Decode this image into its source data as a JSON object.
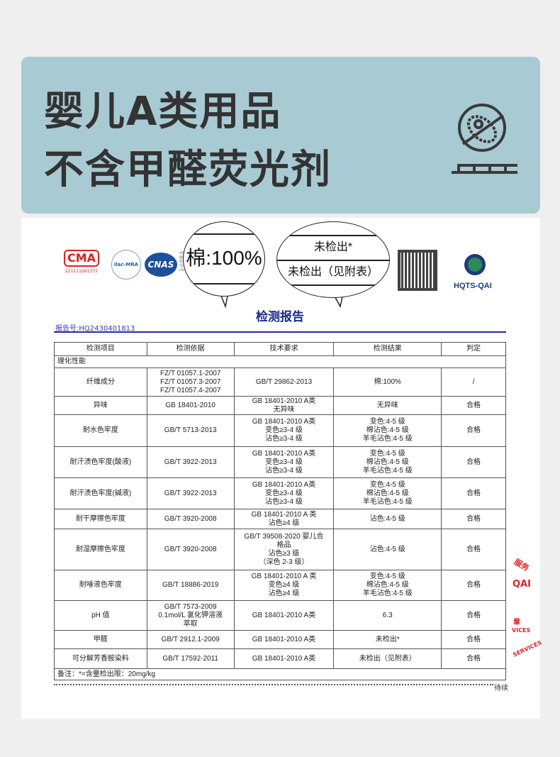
{
  "banner": {
    "line1": "婴儿A类用品",
    "line2": "不含甲醛荧光剂",
    "icon": "no-bacteria-icon"
  },
  "logos": {
    "cma": "CMA",
    "cma_no": "221111261372",
    "ilac": "ilac-MRA",
    "cnas": "CNAS",
    "cnas_text": [
      "中国认可",
      "国际互认",
      "检测",
      "TESTING",
      "CNAS L3129"
    ],
    "hqts": "HQTS-QAI"
  },
  "report": {
    "title": "检测报告",
    "number": "报告号:HQ2430401813",
    "headers": [
      "检测项目",
      "检测依据",
      "技术要求",
      "检测结果",
      "判定"
    ],
    "section": "理化性能",
    "rows": [
      {
        "item": "纤维成分",
        "basis": [
          "FZ/T 01057.1-2007",
          "FZ/T 01057.3-2007",
          "FZ/T 01057.4-2007"
        ],
        "req": [
          "GB/T 29862-2013"
        ],
        "result": [
          "棉:100%"
        ],
        "verdict": "/"
      },
      {
        "item": "异味",
        "basis": [
          "GB 18401-2010"
        ],
        "req": [
          "GB 18401-2010 A类",
          "无异味"
        ],
        "result": [
          "无异味"
        ],
        "verdict": "合格"
      },
      {
        "item": "耐水色牢度",
        "basis": [
          "GB/T 5713-2013"
        ],
        "req": [
          "GB 18401-2010 A类",
          "变色≥3-4 级",
          "沾色≥3-4 级"
        ],
        "result": [
          "变色:4-5 级",
          "棉沾色:4-5 级",
          "羊毛沾色:4-5 级"
        ],
        "verdict": "合格"
      },
      {
        "item": "耐汗渍色牢度(酸液)",
        "basis": [
          "GB/T 3922-2013"
        ],
        "req": [
          "GB 18401-2010 A类",
          "变色≥3-4 级",
          "沾色≥3-4 级"
        ],
        "result": [
          "变色:4-5 级",
          "棉沾色:4-5 级",
          "羊毛沾色:4-5 级"
        ],
        "verdict": "合格"
      },
      {
        "item": "耐汗渍色牢度(碱液)",
        "basis": [
          "GB/T 3922-2013"
        ],
        "req": [
          "GB 18401-2010 A类",
          "变色≥3-4 级",
          "沾色≥3-4 级"
        ],
        "result": [
          "变色:4-5 级",
          "棉沾色:4-5 级",
          "羊毛沾色:4-5 级"
        ],
        "verdict": "合格"
      },
      {
        "item": "耐干摩擦色牢度",
        "basis": [
          "GB/T 3920-2008"
        ],
        "req": [
          "GB 18401-2010 A 类",
          "沾色≥4 级"
        ],
        "result": [
          "沾色:4-5 级"
        ],
        "verdict": "合格"
      },
      {
        "item": "耐湿摩擦色牢度",
        "basis": [
          "GB/T 3920-2008"
        ],
        "req": [
          "GB/T 39508-2020 婴儿合",
          "格品",
          "沾色≥3 级",
          "（深色 2-3 级）"
        ],
        "result": [
          "沾色:4-5 级"
        ],
        "verdict": "合格"
      },
      {
        "item": "耐唾液色牢度",
        "basis": [
          "GB/T 18886-2019"
        ],
        "req": [
          "GB 18401-2010 A 类",
          "变色≥4 级",
          "沾色≥4 级"
        ],
        "result": [
          "变色:4-5 级",
          "棉沾色:4-5 级",
          "羊毛沾色:4-5 级"
        ],
        "verdict": "合格"
      },
      {
        "item": "pH 值",
        "basis": [
          "GB/T 7573-2009",
          "0.1mol/L 氯化钾溶液",
          "萃取"
        ],
        "req": [
          "GB 18401-2010 A类"
        ],
        "result": [
          "6.3"
        ],
        "verdict": "合格"
      },
      {
        "item": "甲醛",
        "basis": [
          "GB/T 2912.1-2009"
        ],
        "req": [
          "GB 18401-2010 A类"
        ],
        "result": [
          "未检出*"
        ],
        "verdict": "合格"
      },
      {
        "item": "可分解芳香胺染料",
        "basis": [
          "GB/T 17592-2011"
        ],
        "req": [
          "GB 18401-2010 A类"
        ],
        "result": [
          "未检出（见附表）"
        ],
        "verdict": "合格"
      }
    ],
    "note": "备注：*=含量检出限：20mg/kg",
    "continued": "待续"
  },
  "magnifiers": {
    "m1": "棉:100%",
    "m2a": "未检出*",
    "m2b": "未检出（见附表）"
  },
  "stamp": {
    "t1": "服务",
    "t2": "QAI",
    "t3": "章",
    "t4": "VICES",
    "t5": "SERVICES"
  }
}
